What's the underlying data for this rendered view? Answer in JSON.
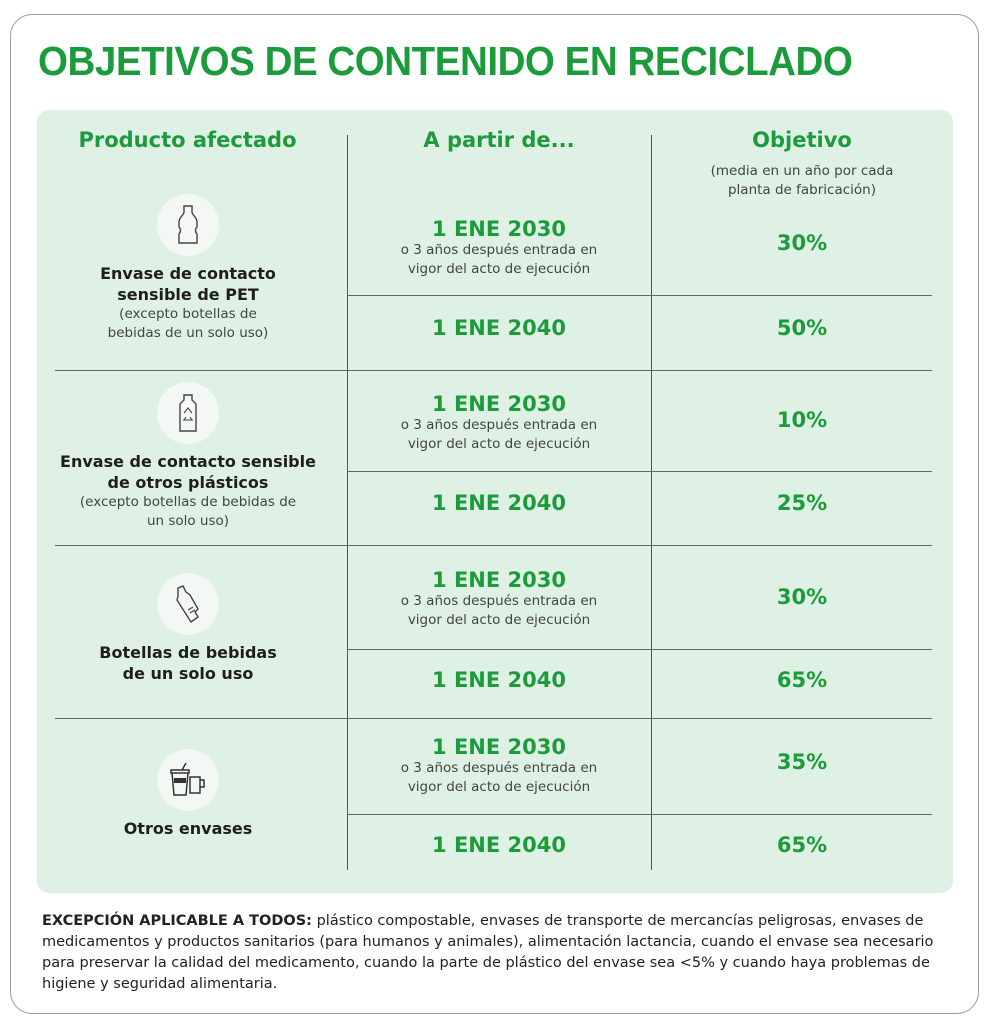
{
  "title": "OBJETIVOS DE CONTENIDO EN RECICLADO",
  "headers": {
    "product": "Producto afectado",
    "from": "A partir de...",
    "target": "Objetivo",
    "target_note": "(media en un año por cada planta de fabricación)"
  },
  "groups": [
    {
      "icon": "pet-bottle-icon",
      "name": "Envase de contacto sensible de PET",
      "note": "(excepto botellas de bebidas de un solo uso)",
      "rows": [
        {
          "date": "1 ENE 2030",
          "date_note": "o 3 años después entrada en vigor del acto de ejecución",
          "target": "30%"
        },
        {
          "date": "1 ENE 2040",
          "target": "50%"
        }
      ]
    },
    {
      "icon": "recycle-bottle-icon",
      "name": "Envase de contacto sensible de otros plásticos",
      "note": "(excepto botellas de bebidas de un solo uso)",
      "rows": [
        {
          "date": "1 ENE 2030",
          "date_note": "o 3 años después entrada en vigor del acto de ejecución",
          "target": "10%"
        },
        {
          "date": "1 ENE 2040",
          "target": "25%"
        }
      ]
    },
    {
      "icon": "crushed-bottle-icon",
      "name": "Botellas de bebidas de un solo uso",
      "rows": [
        {
          "date": "1 ENE 2030",
          "date_note": "o 3 años después entrada en vigor del acto de ejecución",
          "target": "30%"
        },
        {
          "date": "1 ENE 2040",
          "target": "65%"
        }
      ]
    },
    {
      "icon": "cups-icon",
      "name": "Otros envases",
      "rows": [
        {
          "date": "1 ENE 2030",
          "date_note": "o 3 años después entrada en vigor del acto de ejecución",
          "target": "35%"
        },
        {
          "date": "1 ENE 2040",
          "target": "65%"
        }
      ]
    }
  ],
  "footer": {
    "label": "EXCEPCIÓN APLICABLE A TODOS:",
    "text": " plástico compostable, envases de transporte de mercancías peligrosas, envases de medicamentos y productos sanitarios (para humanos y animales), alimentación lactancia, cuando el envase sea necesario para preservar la calidad del medicamento, cuando la parte de plástico del envase sea <5% y cuando haya problemas de higiene y seguridad alimentaria."
  },
  "colors": {
    "accent": "#1c9b3c",
    "panel": "#dff0e4"
  }
}
